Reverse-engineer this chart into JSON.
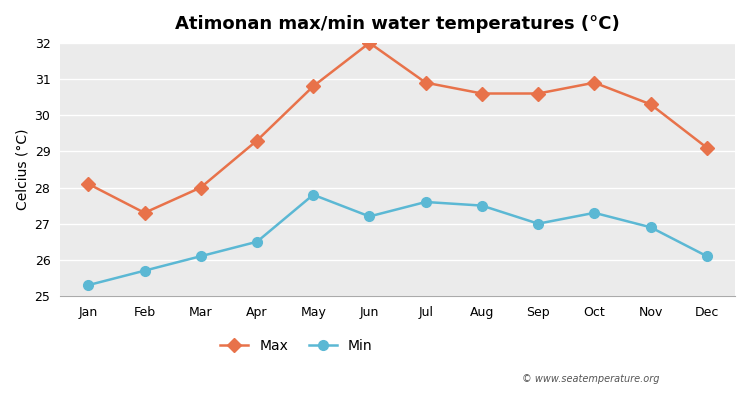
{
  "title": "Atimonan max/min water temperatures (°C)",
  "ylabel": "Celcius (°C)",
  "months": [
    "Jan",
    "Feb",
    "Mar",
    "Apr",
    "May",
    "Jun",
    "Jul",
    "Aug",
    "Sep",
    "Oct",
    "Nov",
    "Dec"
  ],
  "max_temps": [
    28.1,
    27.3,
    28.0,
    29.3,
    30.8,
    32.0,
    30.9,
    30.6,
    30.6,
    30.9,
    30.3,
    29.1
  ],
  "min_temps": [
    25.3,
    25.7,
    26.1,
    26.5,
    27.8,
    27.2,
    27.6,
    27.5,
    27.0,
    27.3,
    26.9,
    26.1
  ],
  "max_color": "#E8724A",
  "min_color": "#5BB8D4",
  "background_color": "#EBEBEB",
  "plot_bg_color": "#EBEBEB",
  "outer_bg_color": "#FFFFFF",
  "ylim": [
    25,
    32
  ],
  "yticks": [
    25,
    26,
    27,
    28,
    29,
    30,
    31,
    32
  ],
  "grid_color": "#FFFFFF",
  "watermark": "© www.seatemperature.org",
  "legend_max": "Max",
  "legend_min": "Min",
  "marker_style": "D",
  "linewidth": 1.8,
  "markersize": 7
}
